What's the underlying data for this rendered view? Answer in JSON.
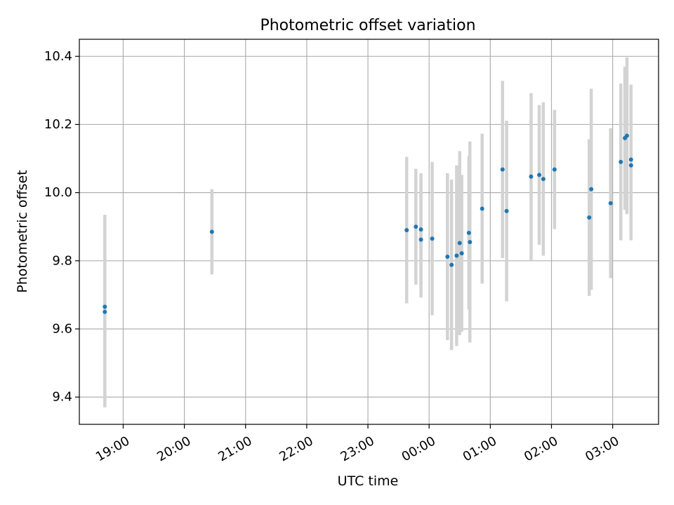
{
  "chart_data": {
    "type": "scatter",
    "title": "Photometric offset variation",
    "xlabel": "UTC time",
    "ylabel": "Photometric offset",
    "x_axis_kind": "time",
    "xlim": [
      "18:17",
      "03:45"
    ],
    "ylim": [
      9.32,
      10.45
    ],
    "x_ticks": [
      "19:00",
      "20:00",
      "21:00",
      "22:00",
      "23:00",
      "00:00",
      "01:00",
      "02:00",
      "03:00"
    ],
    "y_ticks": [
      "9.4",
      "9.6",
      "9.8",
      "10.0",
      "10.2",
      "10.4"
    ],
    "grid": true,
    "marker_color": "#1f77b4",
    "errorbar_color": "#d3d3d3",
    "points": [
      {
        "t": "18:42",
        "y": 9.665,
        "err": 0.27
      },
      {
        "t": "18:42",
        "y": 9.65,
        "err": 0.28
      },
      {
        "t": "20:27",
        "y": 9.885,
        "err": 0.125
      },
      {
        "t": "23:38",
        "y": 9.89,
        "err": 0.215
      },
      {
        "t": "23:47",
        "y": 9.9,
        "err": 0.17
      },
      {
        "t": "23:52",
        "y": 9.892,
        "err": 0.165
      },
      {
        "t": "23:52",
        "y": 9.862,
        "err": 0.17
      },
      {
        "t": "00:03",
        "y": 9.865,
        "err": 0.225
      },
      {
        "t": "00:18",
        "y": 9.812,
        "err": 0.245
      },
      {
        "t": "00:22",
        "y": 9.788,
        "err": 0.25
      },
      {
        "t": "00:27",
        "y": 9.815,
        "err": 0.265
      },
      {
        "t": "00:30",
        "y": 9.852,
        "err": 0.27
      },
      {
        "t": "00:32",
        "y": 9.822,
        "err": 0.23
      },
      {
        "t": "00:39",
        "y": 9.882,
        "err": 0.225
      },
      {
        "t": "00:40",
        "y": 9.855,
        "err": 0.295
      },
      {
        "t": "00:52",
        "y": 9.953,
        "err": 0.22
      },
      {
        "t": "01:12",
        "y": 10.068,
        "err": 0.26
      },
      {
        "t": "01:16",
        "y": 9.946,
        "err": 0.265
      },
      {
        "t": "01:40",
        "y": 10.047,
        "err": 0.245
      },
      {
        "t": "01:48",
        "y": 10.052,
        "err": 0.205
      },
      {
        "t": "01:52",
        "y": 10.04,
        "err": 0.225
      },
      {
        "t": "02:03",
        "y": 10.068,
        "err": 0.175
      },
      {
        "t": "02:37",
        "y": 9.927,
        "err": 0.23
      },
      {
        "t": "02:39",
        "y": 10.01,
        "err": 0.295
      },
      {
        "t": "02:58",
        "y": 9.969,
        "err": 0.22
      },
      {
        "t": "03:08",
        "y": 10.09,
        "err": 0.23
      },
      {
        "t": "03:12",
        "y": 10.16,
        "err": 0.21
      },
      {
        "t": "03:14",
        "y": 10.167,
        "err": 0.23
      },
      {
        "t": "03:18",
        "y": 10.08,
        "err": 0.22
      },
      {
        "t": "03:18",
        "y": 10.097,
        "err": 0.22
      }
    ]
  }
}
